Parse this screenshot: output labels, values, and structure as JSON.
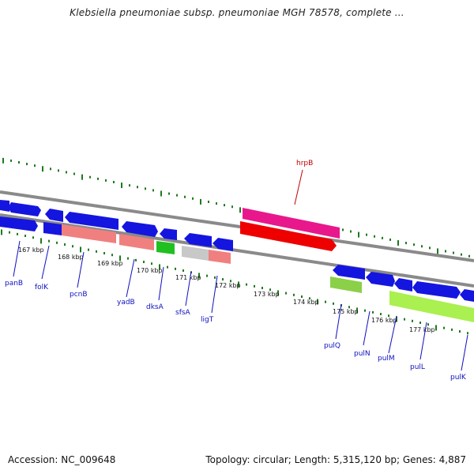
{
  "title": "Klebsiella pneumoniae subsp. pneumoniae MGH 78578, complete ...",
  "footer": {
    "accession": "Accession: NC_009648",
    "summary": "Topology: circular; Length: 5,315,120 bp; Genes: 4,887"
  },
  "colors": {
    "backbone": "#8a8a8a",
    "ticks": "#1e7a1e",
    "label_blue": "#1010c0",
    "label_red": "#c00000"
  },
  "map": {
    "kbp_labels": [
      "167 kbp",
      "168 kbp",
      "169 kbp",
      "170 kbp",
      "171 kbp",
      "172 kbp",
      "173 kbp",
      "174 kbp",
      "175 kbp",
      "176 kbp",
      "177 kbp"
    ],
    "genes": [
      {
        "name": "panB",
        "color": "blue"
      },
      {
        "name": "folK",
        "color": "blue"
      },
      {
        "name": "pcnB",
        "color": "blue"
      },
      {
        "name": "yadB",
        "color": "blue"
      },
      {
        "name": "dksA",
        "color": "blue"
      },
      {
        "name": "sfsA",
        "color": "blue"
      },
      {
        "name": "ligT",
        "color": "blue"
      },
      {
        "name": "hrpB",
        "color": "red"
      },
      {
        "name": "pulQ",
        "color": "blue"
      },
      {
        "name": "pulN",
        "color": "blue"
      },
      {
        "name": "pulM",
        "color": "blue"
      },
      {
        "name": "pulL",
        "color": "blue"
      },
      {
        "name": "pulK",
        "color": "blue"
      }
    ]
  }
}
